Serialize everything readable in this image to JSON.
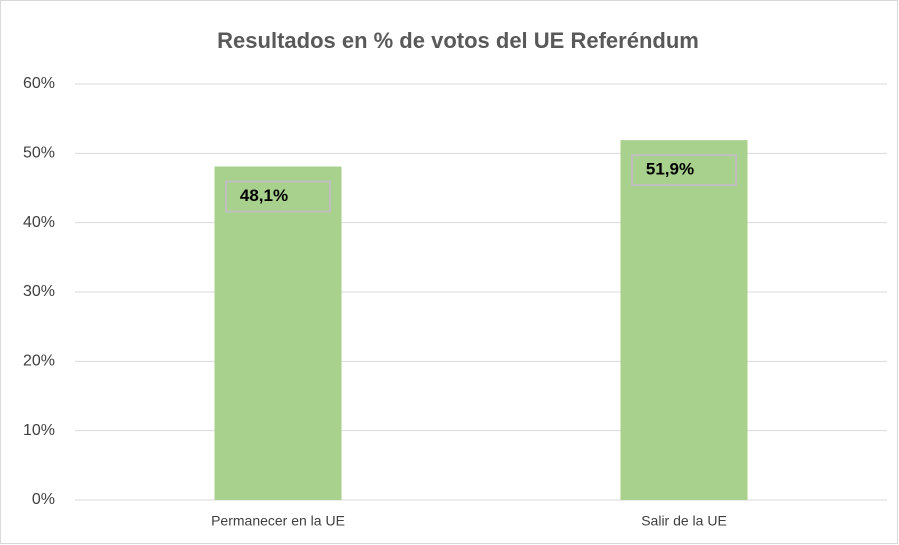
{
  "chart_data": {
    "type": "bar",
    "title": "Resultados en % de votos del UE Referéndum",
    "categories": [
      "Permanecer en la UE",
      "Salir de la UE"
    ],
    "values": [
      48.1,
      51.9
    ],
    "value_labels": [
      "48,1%",
      "51,9%"
    ],
    "color": "#a9d18e",
    "ylim": [
      0,
      60
    ],
    "yticks": [
      {
        "value": 0,
        "label": "0%"
      },
      {
        "value": 10,
        "label": "10%"
      },
      {
        "value": 20,
        "label": "20%"
      },
      {
        "value": 30,
        "label": "30%"
      },
      {
        "value": 40,
        "label": "40%"
      },
      {
        "value": 50,
        "label": "50%"
      },
      {
        "value": 60,
        "label": "60%"
      }
    ],
    "grid": true
  }
}
